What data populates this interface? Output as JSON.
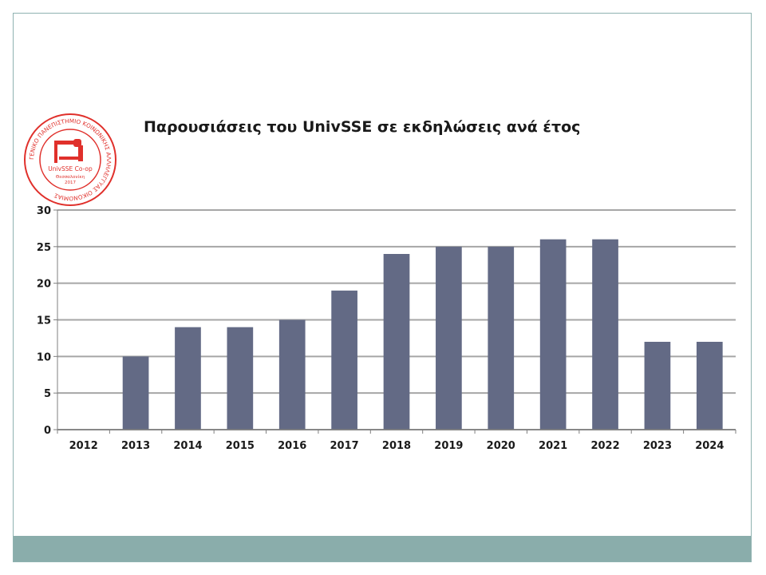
{
  "slide": {
    "frame_color": "#8fb2b0",
    "footer_color": "#8aadab"
  },
  "logo": {
    "text_line1": "UnivSSE Co-op",
    "text_line2": "Θεσσαλονίκη",
    "text_line3": "2017",
    "ring_text": "ΓΕΝΙΚΟ ΠΑΝΕΠΙΣΤΗΜΙΟ ΚΟΙΝΩΝΙΚΗΣ ΑΛΛΗΛΕΓΓΥΑΣ ΟΙΚΟΝΟΜΙΑΣ",
    "color": "#e0302b"
  },
  "chart_data": {
    "type": "bar",
    "title": "Παρουσιάσεις του UnivSSE σε εκδηλώσεις ανά έτος",
    "categories": [
      "2012",
      "2013",
      "2014",
      "2015",
      "2016",
      "2017",
      "2018",
      "2019",
      "2020",
      "2021",
      "2022",
      "2023",
      "2024"
    ],
    "values": [
      0,
      10,
      14,
      14,
      15,
      19,
      24,
      25,
      25,
      26,
      26,
      12,
      12
    ],
    "ylim": [
      0,
      30
    ],
    "yticks": [
      0,
      5,
      10,
      15,
      20,
      25,
      30
    ],
    "grid": true,
    "bar_color": "#636a85",
    "grid_color": "#a6a6a6"
  }
}
